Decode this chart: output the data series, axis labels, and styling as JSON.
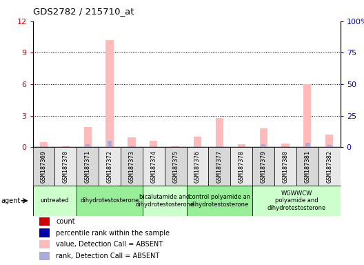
{
  "title": "GDS2782 / 215710_at",
  "samples": [
    "GSM187369",
    "GSM187370",
    "GSM187371",
    "GSM187372",
    "GSM187373",
    "GSM187374",
    "GSM187375",
    "GSM187376",
    "GSM187377",
    "GSM187378",
    "GSM187379",
    "GSM187380",
    "GSM187381",
    "GSM187382"
  ],
  "absent_value": [
    0.5,
    0.1,
    1.9,
    10.2,
    0.9,
    0.6,
    0.05,
    1.0,
    2.8,
    0.25,
    1.8,
    0.35,
    6.0,
    1.2
  ],
  "absent_rank": [
    0.55,
    0.15,
    2.2,
    5.0,
    1.1,
    0.28,
    0.12,
    0.85,
    0.45,
    0.18,
    2.0,
    0.28,
    3.5,
    1.5
  ],
  "agent_groups": [
    {
      "label": "untreated",
      "start": 0,
      "end": 1,
      "color": "#ccffcc"
    },
    {
      "label": "dihydrotestosterone",
      "start": 2,
      "end": 4,
      "color": "#99ee99"
    },
    {
      "label": "bicalutamide and\ndihydrotestosterone",
      "start": 5,
      "end": 6,
      "color": "#ccffcc"
    },
    {
      "label": "control polyamide an\ndihydrotestosterone",
      "start": 7,
      "end": 9,
      "color": "#99ee99"
    },
    {
      "label": "WGWWCW\npolyamide and\ndihydrotestosterone",
      "start": 10,
      "end": 13,
      "color": "#ccffcc"
    }
  ],
  "ylim_left": [
    0,
    12
  ],
  "ylim_right": [
    0,
    100
  ],
  "yticks_left": [
    0,
    3,
    6,
    9,
    12
  ],
  "yticks_right": [
    0,
    25,
    50,
    75,
    100
  ],
  "count_color": "#cc0000",
  "rank_color": "#0000aa",
  "absent_value_color": "#ffbbbb",
  "absent_rank_color": "#aaaadd",
  "absent_rank_scale": 12.0,
  "bar_width": 0.35
}
